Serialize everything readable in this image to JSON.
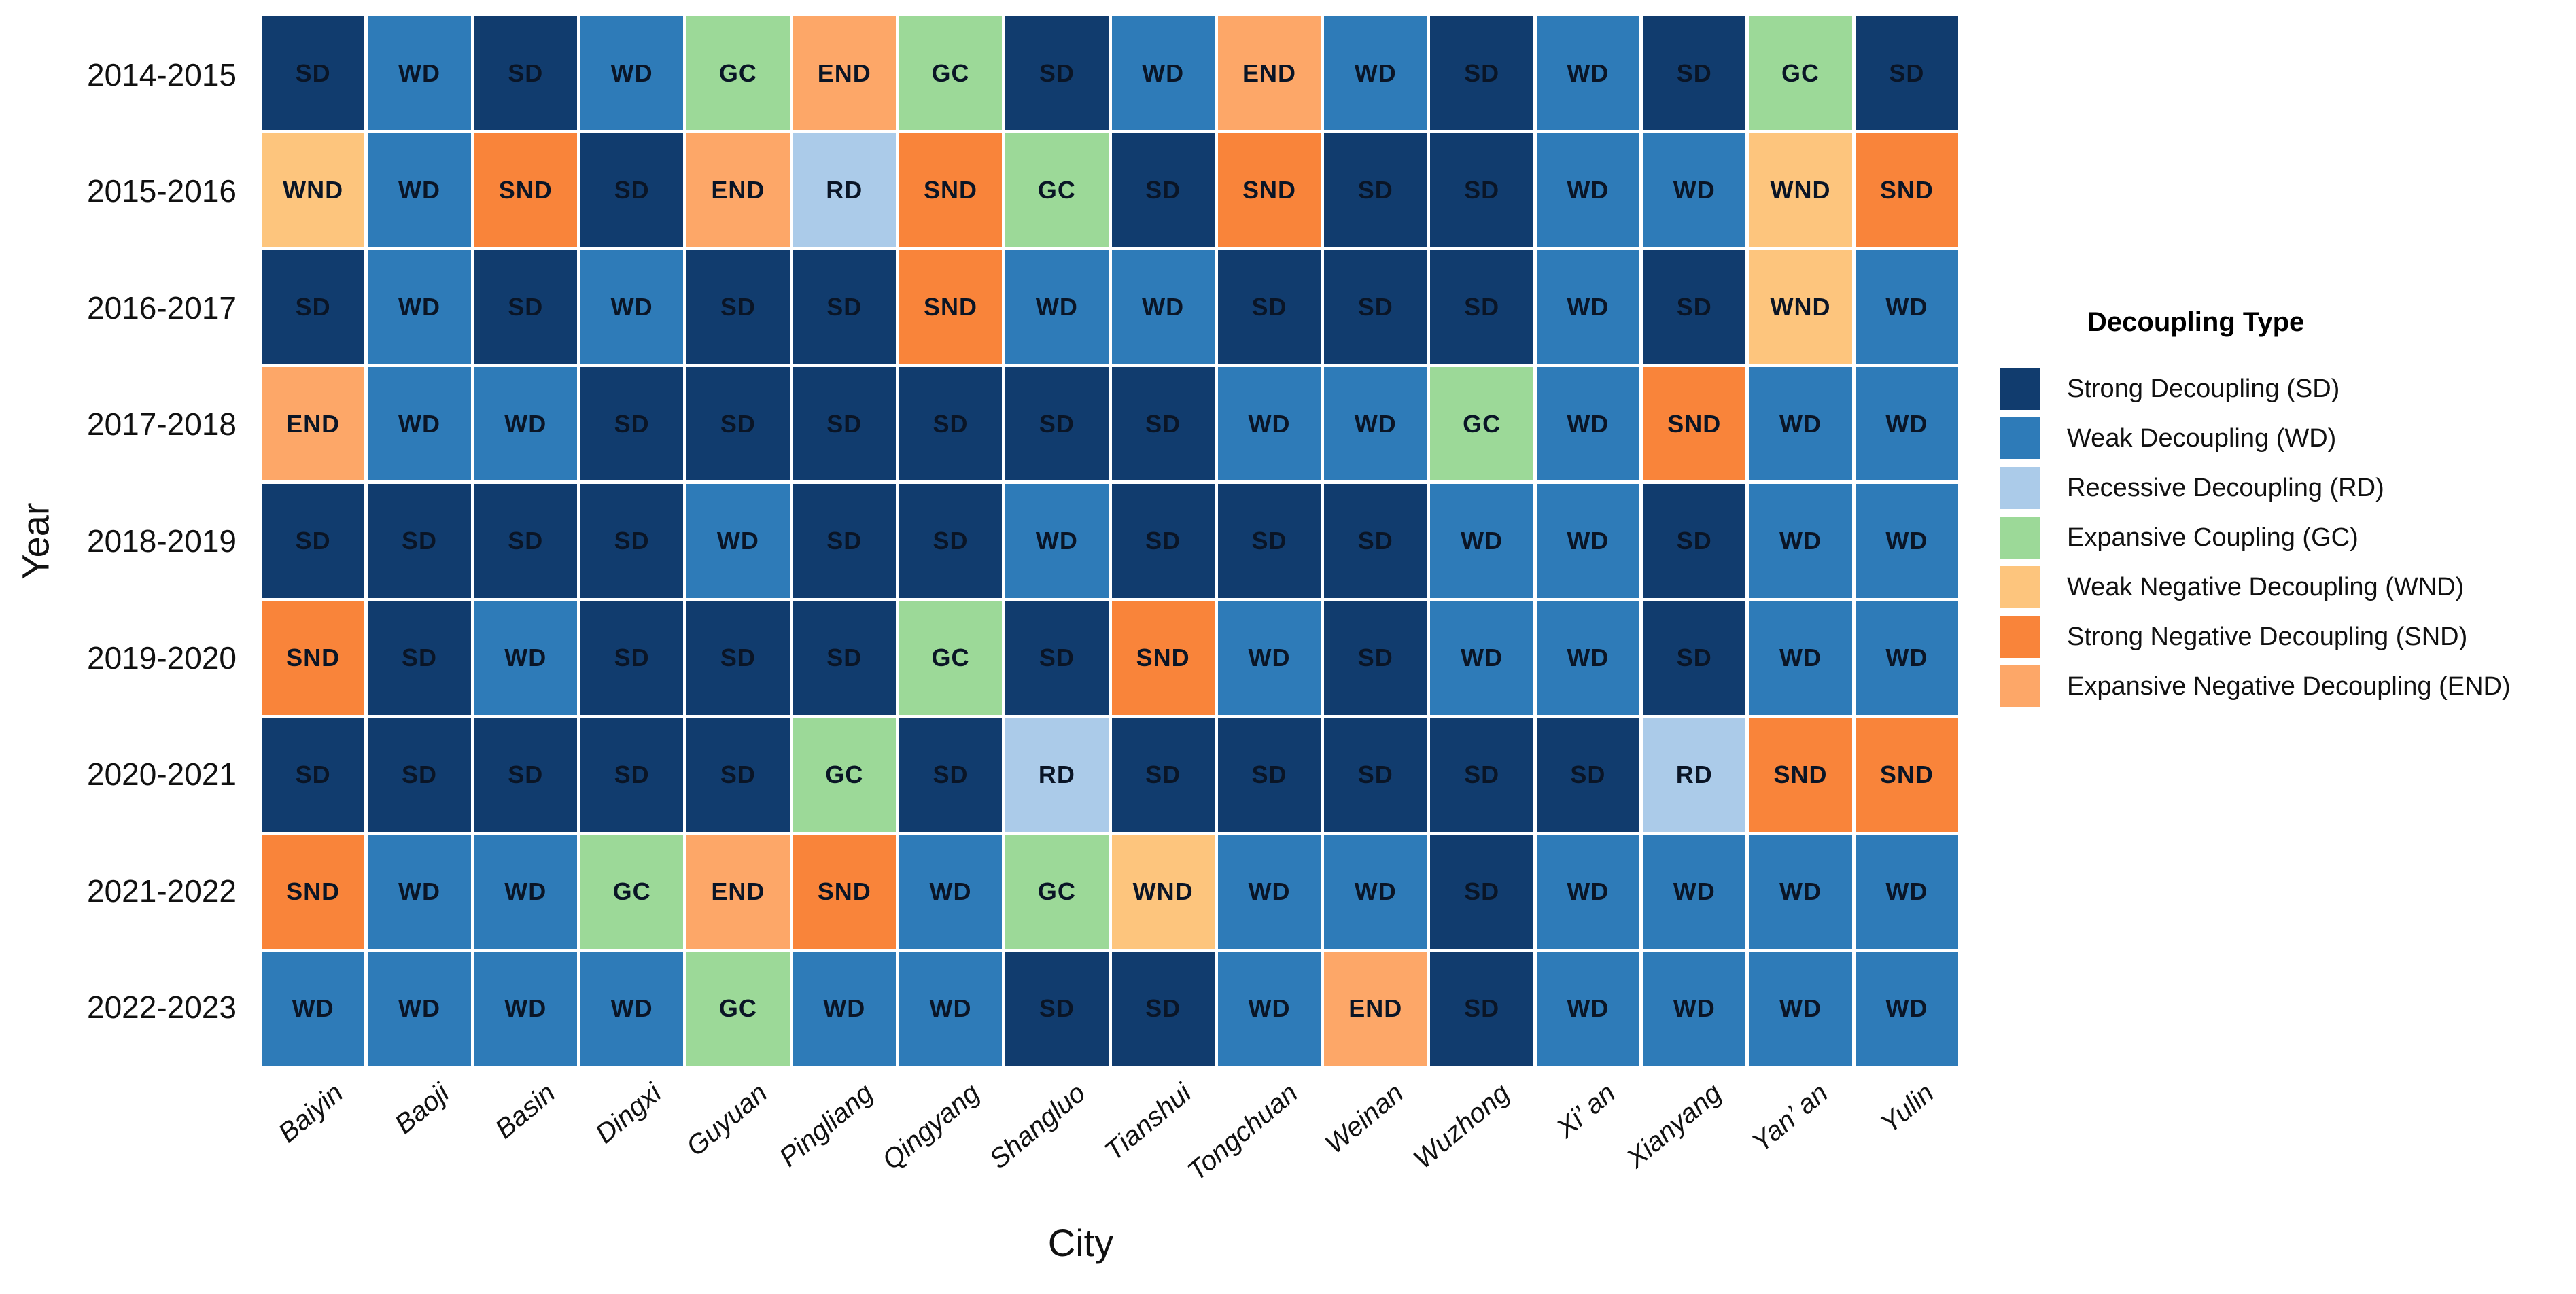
{
  "axes": {
    "x_title": "City",
    "y_title": "Year"
  },
  "legend": {
    "title": "Decoupling Type",
    "items": [
      {
        "code": "SD",
        "label": "Strong Decoupling (SD)",
        "color": "#113c6e"
      },
      {
        "code": "WD",
        "label": "Weak Decoupling (WD)",
        "color": "#2e7bb8"
      },
      {
        "code": "RD",
        "label": "Recessive Decoupling (RD)",
        "color": "#abcbe9"
      },
      {
        "code": "GC",
        "label": "Expansive Coupling (GC)",
        "color": "#9cd998"
      },
      {
        "code": "WND",
        "label": "Weak Negative Decoupling (WND)",
        "color": "#fdc57d"
      },
      {
        "code": "SND",
        "label": "Strong Negative Decoupling (SND)",
        "color": "#f9843a"
      },
      {
        "code": "END",
        "label": "Expansive Negative Decoupling (END)",
        "color": "#fda768"
      }
    ]
  },
  "chart_data": {
    "type": "heatmap",
    "title": "",
    "xlabel": "City",
    "ylabel": "Year",
    "legend_position": "right",
    "grid": false,
    "x_categories": [
      "Baiyin",
      "Baoji",
      "Basin",
      "Dingxi",
      "Guyuan",
      "Pingliang",
      "Qingyang",
      "Shangluo",
      "Tianshui",
      "Tongchuan",
      "Weinan",
      "Wuzhong",
      "Xi’ an",
      "Xianyang",
      "Yan’ an",
      "Yulin"
    ],
    "y_categories": [
      "2014-2015",
      "2015-2016",
      "2016-2017",
      "2017-2018",
      "2018-2019",
      "2019-2020",
      "2020-2021",
      "2021-2022",
      "2022-2023"
    ],
    "values": [
      [
        "SD",
        "WD",
        "SD",
        "WD",
        "GC",
        "END",
        "GC",
        "SD",
        "WD",
        "END",
        "WD",
        "SD",
        "WD",
        "SD",
        "GC",
        "SD"
      ],
      [
        "WND",
        "WD",
        "SND",
        "SD",
        "END",
        "RD",
        "SND",
        "GC",
        "SD",
        "SND",
        "SD",
        "SD",
        "WD",
        "WD",
        "WND",
        "SND"
      ],
      [
        "SD",
        "WD",
        "SD",
        "WD",
        "SD",
        "SD",
        "SND",
        "WD",
        "WD",
        "SD",
        "SD",
        "SD",
        "WD",
        "SD",
        "WND",
        "WD"
      ],
      [
        "END",
        "WD",
        "WD",
        "SD",
        "SD",
        "SD",
        "SD",
        "SD",
        "SD",
        "WD",
        "WD",
        "GC",
        "WD",
        "SND",
        "WD",
        "WD"
      ],
      [
        "SD",
        "SD",
        "SD",
        "SD",
        "WD",
        "SD",
        "SD",
        "WD",
        "SD",
        "SD",
        "SD",
        "WD",
        "WD",
        "SD",
        "WD",
        "WD"
      ],
      [
        "SND",
        "SD",
        "WD",
        "SD",
        "SD",
        "SD",
        "GC",
        "SD",
        "SND",
        "WD",
        "SD",
        "WD",
        "WD",
        "SD",
        "WD",
        "WD"
      ],
      [
        "SD",
        "SD",
        "SD",
        "SD",
        "SD",
        "GC",
        "SD",
        "RD",
        "SD",
        "SD",
        "SD",
        "SD",
        "SD",
        "RD",
        "SND",
        "SND"
      ],
      [
        "SND",
        "WD",
        "WD",
        "GC",
        "END",
        "SND",
        "WD",
        "GC",
        "WND",
        "WD",
        "WD",
        "SD",
        "WD",
        "WD",
        "WD",
        "WD"
      ],
      [
        "WD",
        "WD",
        "WD",
        "WD",
        "GC",
        "WD",
        "WD",
        "SD",
        "SD",
        "WD",
        "END",
        "SD",
        "WD",
        "WD",
        "WD",
        "WD"
      ]
    ]
  }
}
